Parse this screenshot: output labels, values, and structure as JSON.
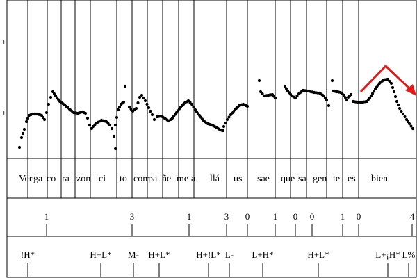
{
  "pitch_panel": {
    "y_tick_labels": [
      "I",
      "I"
    ],
    "contour_color": "#000000",
    "annotation_color": "#e31b1b",
    "annotation_shape": "rise-fall-arrow"
  },
  "syllables": [
    "Ver",
    "ga",
    "co",
    "ra",
    "zon",
    "ci",
    "to",
    "com",
    "pa",
    "ñe",
    "me",
    "a",
    "llá",
    "us",
    "sae",
    "que",
    "sa",
    "gen",
    "te",
    "es",
    "bien"
  ],
  "break_indices": [
    "1",
    "3",
    "1",
    "3",
    "0",
    "1",
    "0",
    "0",
    "1",
    "0",
    "4"
  ],
  "tones": [
    "!H*",
    "H+L*",
    "M-",
    "H+L*",
    "H+!L*",
    "L-",
    "L+H*",
    "H+L*",
    "L+¡H*",
    "L%"
  ]
}
